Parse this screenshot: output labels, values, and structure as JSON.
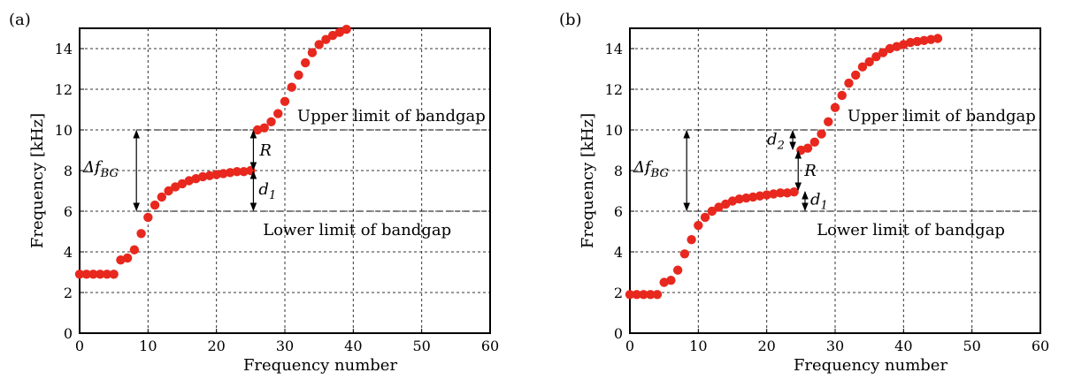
{
  "chart_data": [
    {
      "panel_label": "(a)",
      "type": "scatter",
      "xlabel": "Frequency number",
      "ylabel": "Frequency [kHz]",
      "xlim": [
        0,
        60
      ],
      "ylim": [
        0,
        15
      ],
      "xticks": [
        "0",
        "10",
        "20",
        "30",
        "40",
        "50",
        "60"
      ],
      "yticks": [
        "0",
        "2",
        "4",
        "6",
        "8",
        "10",
        "12",
        "14"
      ],
      "grid": true,
      "marker_color": "#e8281e",
      "x": [
        0,
        1,
        2,
        3,
        4,
        5,
        6,
        7,
        8,
        9,
        10,
        11,
        12,
        13,
        14,
        15,
        16,
        17,
        18,
        19,
        20,
        21,
        22,
        23,
        24,
        25,
        26,
        27,
        28,
        29,
        30,
        31,
        32,
        33,
        34,
        35,
        36,
        37,
        38,
        39
      ],
      "y": [
        2.9,
        2.9,
        2.9,
        2.9,
        2.9,
        2.9,
        3.6,
        3.7,
        4.1,
        4.9,
        5.7,
        6.3,
        6.7,
        7.0,
        7.2,
        7.35,
        7.5,
        7.6,
        7.7,
        7.75,
        7.8,
        7.85,
        7.9,
        7.95,
        7.95,
        8.0,
        10.0,
        10.1,
        10.4,
        10.8,
        11.4,
        12.1,
        12.7,
        13.3,
        13.8,
        14.2,
        14.45,
        14.65,
        14.8,
        14.95
      ],
      "bandgap": {
        "lower": 6,
        "upper": 10
      },
      "annotations": {
        "upper_limit": "Upper limit of bandgap",
        "lower_limit": "Lower limit of bandgap",
        "delta_f": "Δf",
        "delta_f_sub": "BG",
        "R": "R",
        "d1": "d",
        "d1_sub": "1"
      }
    },
    {
      "panel_label": "(b)",
      "type": "scatter",
      "xlabel": "Frequency number",
      "ylabel": "Frequency [kHz]",
      "xlim": [
        0,
        60
      ],
      "ylim": [
        0,
        15
      ],
      "xticks": [
        "0",
        "10",
        "20",
        "30",
        "40",
        "50",
        "60"
      ],
      "yticks": [
        "0",
        "2",
        "4",
        "6",
        "8",
        "10",
        "12",
        "14"
      ],
      "grid": true,
      "marker_color": "#e8281e",
      "x": [
        0,
        1,
        2,
        3,
        4,
        5,
        6,
        7,
        8,
        9,
        10,
        11,
        12,
        13,
        14,
        15,
        16,
        17,
        18,
        19,
        20,
        21,
        22,
        23,
        24,
        25,
        26,
        27,
        28,
        29,
        30,
        31,
        32,
        33,
        34,
        35,
        36,
        37,
        38,
        39,
        40,
        41,
        42,
        43,
        44,
        45
      ],
      "y": [
        1.9,
        1.9,
        1.9,
        1.9,
        1.9,
        2.5,
        2.6,
        3.1,
        3.9,
        4.6,
        5.3,
        5.7,
        6.0,
        6.2,
        6.35,
        6.5,
        6.6,
        6.65,
        6.7,
        6.75,
        6.8,
        6.85,
        6.9,
        6.9,
        6.95,
        9.0,
        9.1,
        9.4,
        9.8,
        10.4,
        11.1,
        11.7,
        12.3,
        12.7,
        13.1,
        13.35,
        13.6,
        13.8,
        14.0,
        14.1,
        14.2,
        14.3,
        14.35,
        14.4,
        14.45,
        14.5
      ],
      "bandgap": {
        "lower": 6,
        "upper": 10
      },
      "annotations": {
        "upper_limit": "Upper limit of bandgap",
        "lower_limit": "Lower limit of bandgap",
        "delta_f": "Δf",
        "delta_f_sub": "BG",
        "R": "R",
        "d1": "d",
        "d1_sub": "1",
        "d2": "d",
        "d2_sub": "2"
      }
    }
  ]
}
